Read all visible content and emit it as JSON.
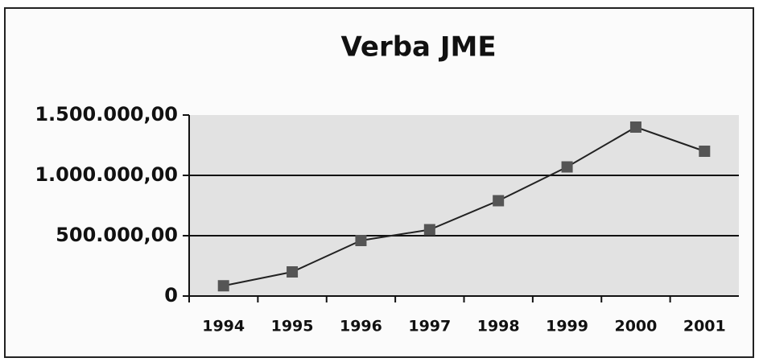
{
  "chart_data": {
    "type": "line",
    "title": "Verba JME",
    "categories": [
      "1994",
      "1995",
      "1996",
      "1997",
      "1998",
      "1999",
      "2000",
      "2001"
    ],
    "series": [
      {
        "name": "Verba JME",
        "color": "#555555",
        "values": [
          85000,
          200000,
          460000,
          550000,
          790000,
          1070000,
          1400000,
          1200000
        ]
      }
    ],
    "ylim": [
      0,
      1500000
    ],
    "yticks": [
      0,
      {
        "value": 500000,
        "label": "500.000,00"
      },
      {
        "value": 1000000,
        "label": "1.000.000,00"
      },
      {
        "value": 1500000,
        "label": "1.500.000,00"
      }
    ],
    "grid": true
  }
}
